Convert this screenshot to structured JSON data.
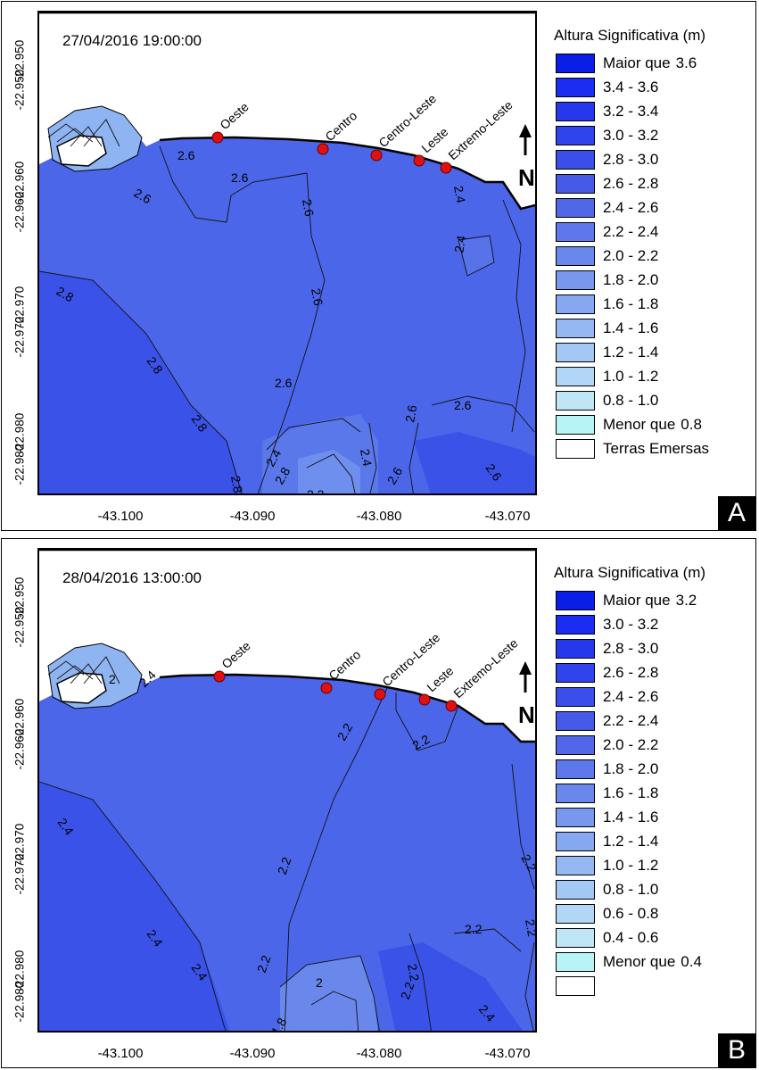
{
  "panels": [
    {
      "letter": "A",
      "timestamp": "27/04/2016 19:00:00",
      "legend_title": "Altura Significativa (m)",
      "legend": [
        {
          "label": "Maior que",
          "extra": "3.6",
          "color": "#0b1ee8"
        },
        {
          "label": "3.4 - 3.6",
          "extra": "",
          "color": "#1a2df0"
        },
        {
          "label": "3.2 - 3.4",
          "extra": "",
          "color": "#2538ec"
        },
        {
          "label": "3.0 - 3.2",
          "extra": "",
          "color": "#2f44ec"
        },
        {
          "label": "2.8 - 3.0",
          "extra": "",
          "color": "#3a4fea"
        },
        {
          "label": "2.6 - 2.8",
          "extra": "",
          "color": "#455be8"
        },
        {
          "label": "2.4 - 2.6",
          "extra": "",
          "color": "#5068e8"
        },
        {
          "label": "2.2 - 2.4",
          "extra": "",
          "color": "#5c78ea"
        },
        {
          "label": "2.0 - 2.2",
          "extra": "",
          "color": "#6a88ec"
        },
        {
          "label": "1.8 - 2.0",
          "extra": "",
          "color": "#7898ee"
        },
        {
          "label": "1.6 - 1.8",
          "extra": "",
          "color": "#86a8f0"
        },
        {
          "label": "1.4 - 1.6",
          "extra": "",
          "color": "#95b8f2"
        },
        {
          "label": "1.2 - 1.4",
          "extra": "",
          "color": "#a4c8f4"
        },
        {
          "label": "1.0 - 1.2",
          "extra": "",
          "color": "#b2d6f6"
        },
        {
          "label": "0.8 - 1.0",
          "extra": "",
          "color": "#c0e6f6"
        },
        {
          "label": "Menor que",
          "extra": "0.8",
          "color": "#b6f4f6"
        },
        {
          "label": "Terras Emersas",
          "extra": "",
          "color": "#ffffff"
        }
      ],
      "contour_labels": [
        "2.6",
        "2.6",
        "2.6",
        "2.6",
        "2.4",
        "2.4",
        "2.6",
        "2.8",
        "2.6",
        "2.8",
        "2.8",
        "2.6",
        "2.6",
        "2.4",
        "2.4",
        "2.6",
        "2.6",
        "2.8",
        "2.8",
        "2.2",
        "2"
      ]
    },
    {
      "letter": "B",
      "timestamp": "28/04/2016 13:00:00",
      "legend_title": "Altura Significativa (m)",
      "legend": [
        {
          "label": "Maior que",
          "extra": "3.2",
          "color": "#0b1ee8"
        },
        {
          "label": "3.0 - 3.2",
          "extra": "",
          "color": "#1a2df0"
        },
        {
          "label": "2.8 - 3.0",
          "extra": "",
          "color": "#2538ec"
        },
        {
          "label": "2.6 - 2.8",
          "extra": "",
          "color": "#2f44ec"
        },
        {
          "label": "2.4 - 2.6",
          "extra": "",
          "color": "#3a4fea"
        },
        {
          "label": "2.2 - 2.4",
          "extra": "",
          "color": "#455be8"
        },
        {
          "label": "2.0 - 2.2",
          "extra": "",
          "color": "#5068e8"
        },
        {
          "label": "1.8 - 2.0",
          "extra": "",
          "color": "#5c78ea"
        },
        {
          "label": "1.6 - 1.8",
          "extra": "",
          "color": "#6a88ec"
        },
        {
          "label": "1.4 - 1.6",
          "extra": "",
          "color": "#7898ee"
        },
        {
          "label": "1.2 - 1.4",
          "extra": "",
          "color": "#86a8f0"
        },
        {
          "label": "1.0 - 1.2",
          "extra": "",
          "color": "#95b8f2"
        },
        {
          "label": "0.8 - 1.0",
          "extra": "",
          "color": "#a4c8f4"
        },
        {
          "label": "0.6 - 0.8",
          "extra": "",
          "color": "#b2d6f6"
        },
        {
          "label": "0.4 - 0.6",
          "extra": "",
          "color": "#c0e6f6"
        },
        {
          "label": "Menor que",
          "extra": "0.4",
          "color": "#b6f4f6"
        },
        {
          "label": "",
          "extra": "",
          "color": "#ffffff"
        }
      ],
      "contour_labels": [
        "2.4",
        "2",
        "2.2",
        "2.2",
        "2.4",
        "2.2",
        "2.2",
        "2.4",
        "2.4",
        "2.2",
        "2.2",
        "2.2",
        "2",
        "2.2",
        "1.8",
        "2.4",
        "2.4",
        "2.2"
      ]
    }
  ],
  "stations": [
    "Oeste",
    "Centro",
    "Centro-Leste",
    "Leste",
    "Extremo-Leste"
  ],
  "north_label": "N",
  "y_ticks": [
    "-22.950",
    "-22.950",
    "-22.960",
    "-22.960",
    "-22.970",
    "-22.970",
    "-22.980",
    "-22.980"
  ],
  "x_ticks": [
    "-43.100",
    "-43.090",
    "-43.080",
    "-43.070"
  ],
  "colors": {
    "sea_A": "#4560e6",
    "sea_A_deep": "#3a50e8",
    "sea_A_shallow": "#5a78e8",
    "sea_B": "#4560e6",
    "sea_B_deep": "#3a50e8",
    "sea_B_shallow": "#6a88ec",
    "station_marker": "#e01010",
    "land": "#ffffff"
  }
}
